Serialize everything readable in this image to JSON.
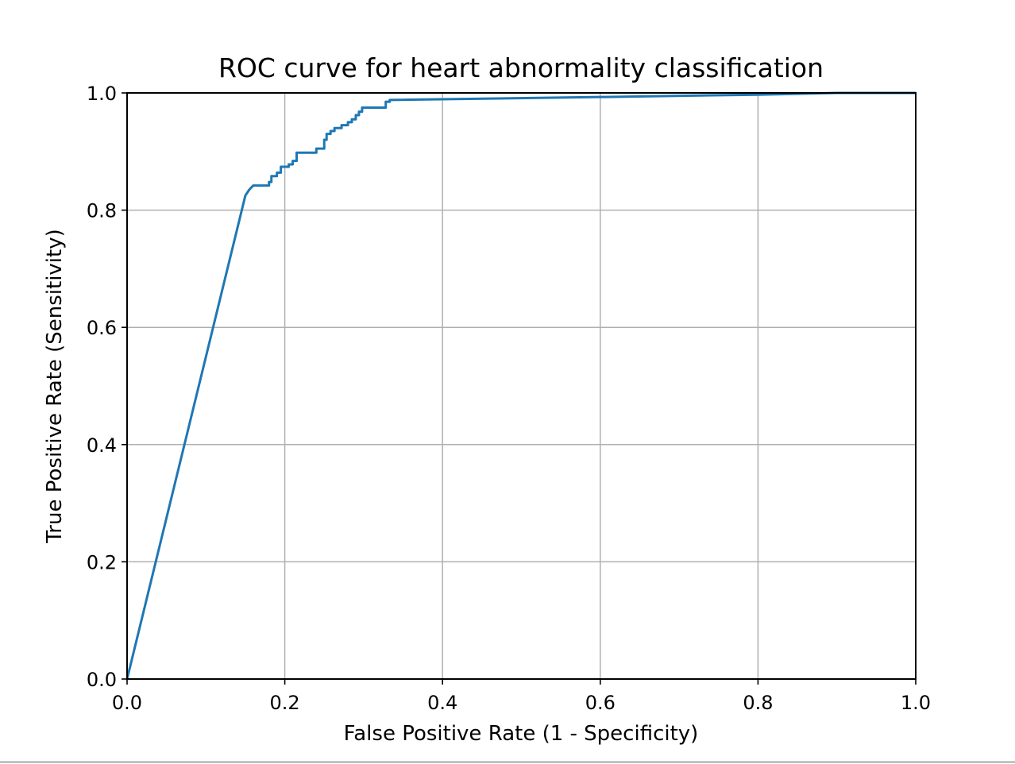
{
  "chart_data": {
    "type": "line",
    "title": "ROC curve for heart abnormality classification",
    "xlabel": "False Positive Rate (1 - Specificity)",
    "ylabel": "True Positive Rate (Sensitivity)",
    "xlim": [
      0.0,
      1.0
    ],
    "ylim": [
      0.0,
      1.0
    ],
    "xticks": [
      0.0,
      0.2,
      0.4,
      0.6,
      0.8,
      1.0
    ],
    "yticks": [
      0.0,
      0.2,
      0.4,
      0.6,
      0.8,
      1.0
    ],
    "xtick_labels": [
      "0.0",
      "0.2",
      "0.4",
      "0.6",
      "0.8",
      "1.0"
    ],
    "ytick_labels": [
      "0.0",
      "0.2",
      "0.4",
      "0.6",
      "0.8",
      "1.0"
    ],
    "grid": true,
    "series": [
      {
        "color": "#1f77b4",
        "x": [
          0.0,
          0.15,
          0.155,
          0.16,
          0.18,
          0.18,
          0.183,
          0.183,
          0.19,
          0.19,
          0.195,
          0.195,
          0.205,
          0.205,
          0.21,
          0.21,
          0.215,
          0.215,
          0.24,
          0.24,
          0.25,
          0.25,
          0.253,
          0.253,
          0.258,
          0.258,
          0.263,
          0.263,
          0.272,
          0.272,
          0.28,
          0.28,
          0.285,
          0.285,
          0.29,
          0.29,
          0.294,
          0.294,
          0.298,
          0.298,
          0.328,
          0.328,
          0.333,
          0.333,
          0.6,
          0.8,
          0.9,
          1.0
        ],
        "y": [
          0.0,
          0.825,
          0.835,
          0.842,
          0.842,
          0.848,
          0.848,
          0.858,
          0.858,
          0.864,
          0.864,
          0.874,
          0.874,
          0.878,
          0.878,
          0.884,
          0.884,
          0.898,
          0.898,
          0.905,
          0.905,
          0.92,
          0.92,
          0.93,
          0.93,
          0.935,
          0.935,
          0.94,
          0.94,
          0.945,
          0.945,
          0.95,
          0.95,
          0.955,
          0.955,
          0.962,
          0.962,
          0.968,
          0.968,
          0.975,
          0.975,
          0.985,
          0.985,
          0.988,
          0.993,
          0.997,
          1.0,
          1.0
        ]
      }
    ]
  }
}
